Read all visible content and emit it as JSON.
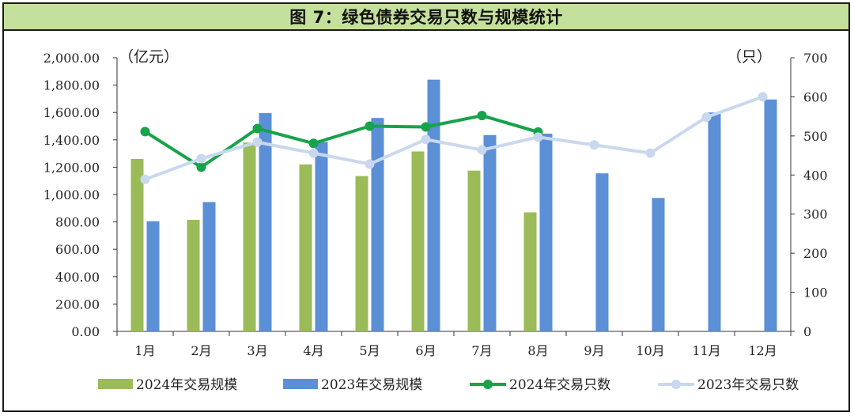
{
  "title": "图 7：绿色债券交易只数与规模统计",
  "chart_data": {
    "type": "bar+line",
    "categories": [
      "1月",
      "2月",
      "3月",
      "4月",
      "5月",
      "6月",
      "7月",
      "8月",
      "9月",
      "10月",
      "11月",
      "12月"
    ],
    "left_axis": {
      "unit": "（亿元）",
      "ylim": [
        0,
        2000
      ],
      "ticks": [
        "0.00",
        "200.00",
        "400.00",
        "600.00",
        "800.00",
        "1,000.00",
        "1,200.00",
        "1,400.00",
        "1,600.00",
        "1,800.00",
        "2,000.00"
      ]
    },
    "right_axis": {
      "unit": "（只）",
      "ylim": [
        0,
        700
      ],
      "ticks": [
        "0",
        "100",
        "200",
        "300",
        "400",
        "500",
        "600",
        "700"
      ]
    },
    "bar_series": [
      {
        "name": "2024年交易规模",
        "color": "#9bbb59",
        "values": [
          1260,
          815,
          1380,
          1220,
          1135,
          1315,
          1175,
          870,
          null,
          null,
          null,
          null
        ]
      },
      {
        "name": "2023年交易规模",
        "color": "#5b8fd6",
        "values": [
          805,
          945,
          1595,
          1385,
          1560,
          1840,
          1435,
          1445,
          1155,
          975,
          1600,
          1695
        ]
      }
    ],
    "line_series": [
      {
        "name": "2024年交易只数",
        "color": "#16a34a",
        "values": [
          511,
          420,
          519,
          481,
          525,
          523,
          552,
          510,
          null,
          null,
          null,
          null
        ]
      },
      {
        "name": "2023年交易只数",
        "color": "#c9d8ee",
        "values": [
          389,
          442,
          484,
          456,
          428,
          491,
          464,
          497,
          477,
          456,
          548,
          600
        ]
      }
    ],
    "legend_position": "bottom",
    "grid": false
  }
}
